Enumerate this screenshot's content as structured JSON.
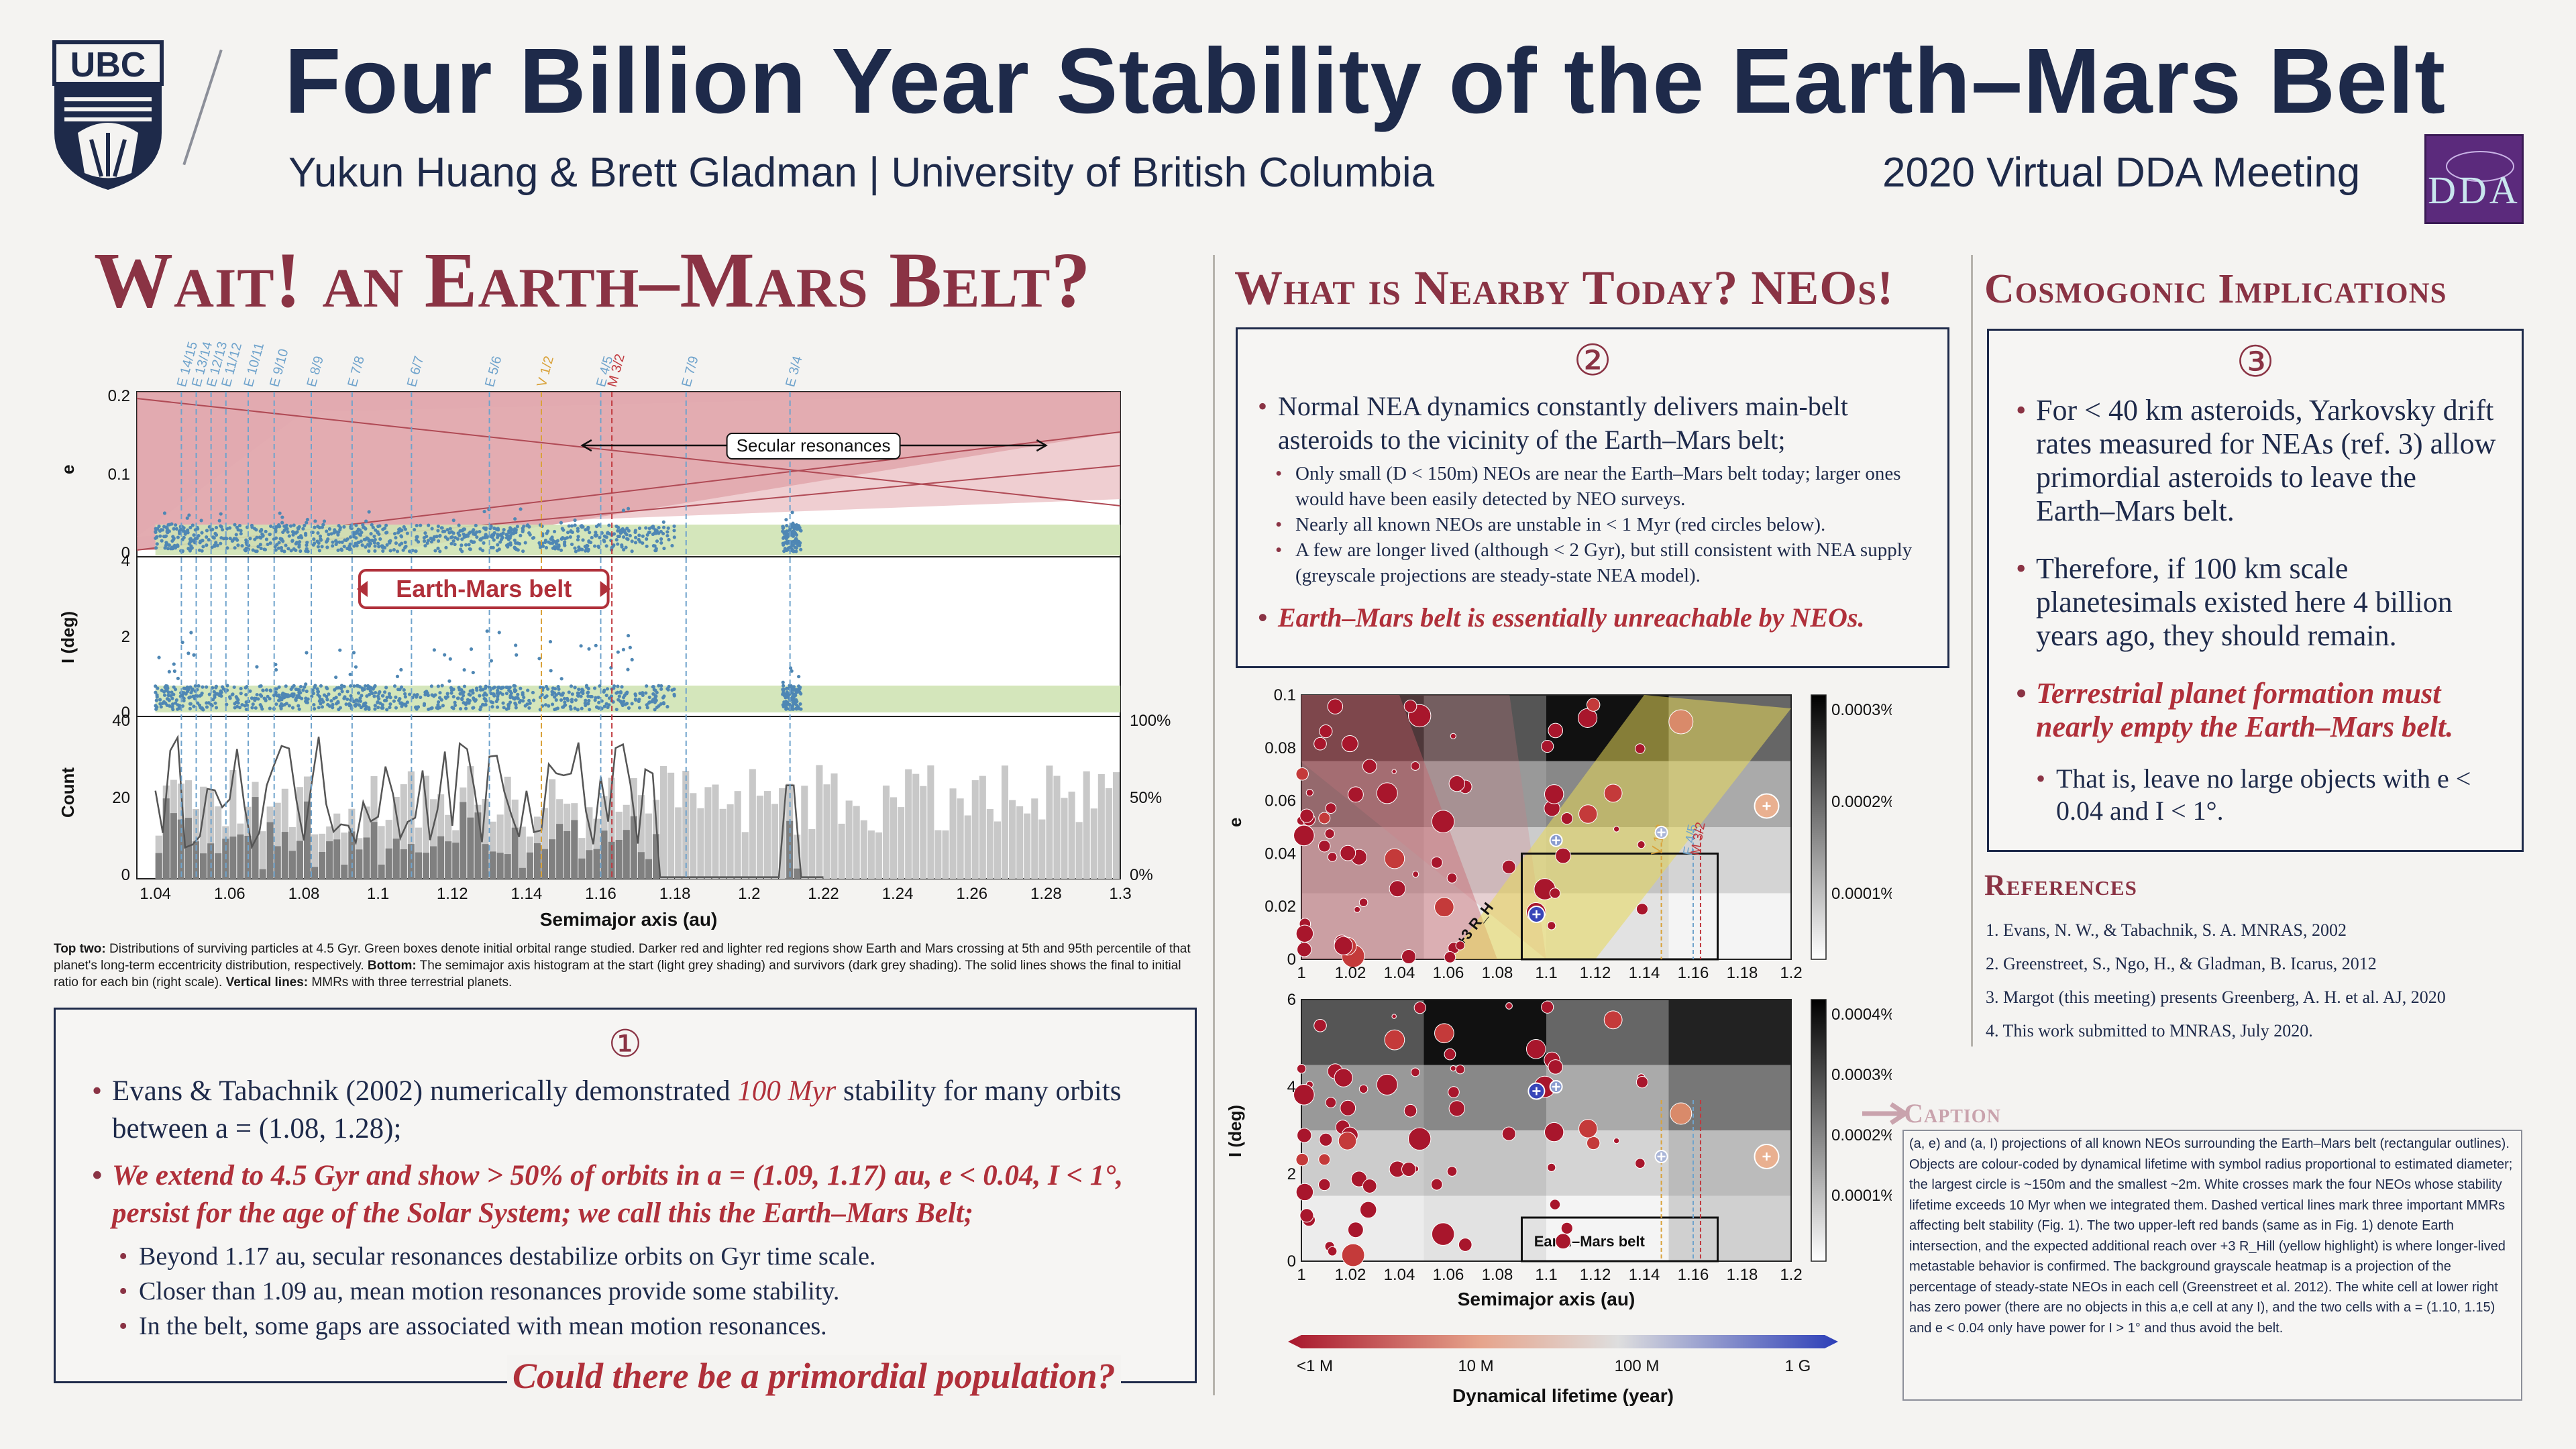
{
  "header": {
    "logo_text": "UBC",
    "title": "Four Billion Year Stability of the Earth–Mars Belt",
    "authors": "Yukun Huang & Brett Gladman | University of British Columbia",
    "meeting": "2020 Virtual DDA Meeting",
    "dda_logo": "DDA"
  },
  "left": {
    "heading": "Wait! an Earth–Mars Belt?",
    "caption_bold1": "Top two:",
    "caption1": " Distributions of surviving particles at 4.5 Gyr. Green boxes denote initial orbital range studied. Darker red and lighter red regions show Earth and Mars crossing at 5th and 95th percentile of that planet's long-term eccentricity distribution, respectively.",
    "caption_bold2": "Bottom:",
    "caption2": " The semimajor axis histogram at the start (light grey shading) and survivors (dark grey shading). The solid lines shows the final to initial ratio for each bin (right scale).",
    "caption_bold3": "Vertical lines:",
    "caption3": " MMRs with three terrestrial planets.",
    "box_num": "①",
    "b1_pre": "Evans & Tabachnik (2002) numerically demonstrated ",
    "b1_em": "100 Myr",
    "b1_post": " stability for many orbits between a = (1.08, 1.28);",
    "b2": "We extend to 4.5 Gyr and show > 50% of orbits in a = (1.09, 1.17) au, e < 0.04, I < 1°, persist for the age of the Solar System; we call this the Earth–Mars Belt;",
    "sub1": "Beyond 1.17 au, secular resonances destabilize orbits on Gyr time scale.",
    "sub2": "Closer than 1.09 au, mean motion resonances provide some stability.",
    "sub3": "In the belt, some gaps are associated with mean motion resonances.",
    "question": "Could there be a primordial population?"
  },
  "fig1": {
    "res_labels": [
      "E 14/15",
      "E 13/14",
      "E 12/13",
      "E 11/12",
      "E 10/11",
      "E 9/10",
      "E 8/9",
      "E 7/8",
      "E 6/7",
      "E 5/6",
      "V 1/2",
      "E 4/5",
      "M 3/2",
      "E 7/9",
      "E 3/4"
    ],
    "res_a": [
      1.047,
      1.051,
      1.055,
      1.059,
      1.065,
      1.072,
      1.082,
      1.093,
      1.109,
      1.13,
      1.144,
      1.16,
      1.163,
      1.183,
      1.211
    ],
    "secular_label": "Secular resonances",
    "belt_label": "Earth-Mars belt",
    "e_label": "e",
    "i_label": "I (deg)",
    "count_label": "Count",
    "x_label": "Semimajor axis (au)",
    "e_ticks": [
      "0.2",
      "0.1",
      "0"
    ],
    "i_ticks": [
      "4",
      "2",
      "0"
    ],
    "c_ticks": [
      "40",
      "20",
      "0"
    ],
    "pct_ticks": [
      "100%",
      "50%",
      "0%"
    ],
    "x_ticks": [
      "1.04",
      "1.06",
      "1.08",
      "1.1",
      "1.12",
      "1.14",
      "1.16",
      "1.18",
      "1.2",
      "1.22",
      "1.24",
      "1.26",
      "1.28",
      "1.3"
    ]
  },
  "middle": {
    "heading": "What is Nearby Today? NEOs!",
    "box_num": "②",
    "b1": "Normal NEA dynamics constantly delivers main-belt asteroids to the vicinity of the Earth–Mars belt;",
    "s1": "Only small (D < 150m) NEOs are near the Earth–Mars belt today; larger ones would have been easily detected by NEO surveys.",
    "s2": "Nearly all known NEOs are unstable in < 1 Myr (red circles below).",
    "s3": "A few are longer lived (although < 2 Gyr), but still consistent with NEA supply (greyscale projections are steady-state NEA model).",
    "b2": "Earth–Mars belt is essentially unreachable by NEOs."
  },
  "fig2": {
    "e_label": "e",
    "i_label": "I (deg)",
    "x_label": "Semimajor axis (au)",
    "e_ticks": [
      "0.1",
      "0.08",
      "0.06",
      "0.04",
      "0.02",
      "0"
    ],
    "i_ticks": [
      "6",
      "4",
      "2",
      "0"
    ],
    "x_ticks": [
      "1",
      "1.02",
      "1.04",
      "1.06",
      "1.08",
      "1.1",
      "1.12",
      "1.14",
      "1.16",
      "1.18",
      "1.2"
    ],
    "cb1": [
      "0.0003%",
      "0.0002%",
      "0.0001%"
    ],
    "cb2": [
      "0.0004%",
      "0.0003%",
      "0.0002%",
      "0.0001%"
    ],
    "hill_label": "+3 R_H",
    "belt_label": "Earth–Mars belt",
    "res_labels": [
      "V 1/2",
      "E 4/5",
      "M 3/2"
    ],
    "lifetime_ticks": [
      "<1 M",
      "10 M",
      "100 M",
      "1 G"
    ],
    "lifetime_label": "Dynamical lifetime (year)"
  },
  "right": {
    "heading": "Cosmogonic Implications",
    "box_num": "③",
    "b1": "For < 40 km asteroids, Yarkovsky drift rates measured for NEAs (ref. 3) allow primordial asteroids to leave the Earth–Mars belt.",
    "b2": "Therefore, if 100 km scale planetesimals existed here 4 billion years ago, they should remain.",
    "b3": "Terrestrial planet formation must nearly empty the Earth–Mars belt.",
    "sub": "That is, leave no large objects with e < 0.04 and I < 1°.",
    "ref_heading": "References",
    "refs": [
      "1. Evans, N. W., & Tabachnik, S. A. MNRAS, 2002",
      "2. Greenstreet, S., Ngo, H., & Gladman, B. Icarus, 2012",
      "3. Margot (this meeting) presents Greenberg, A. H. et al. AJ, 2020",
      "4. This work submitted to MNRAS, July 2020."
    ],
    "caption_heading": "Caption",
    "caption": "(a, e) and (a, I) projections of all known NEOs surrounding the Earth–Mars belt (rectangular outlines). Objects are colour-coded by dynamical lifetime with symbol radius proportional to estimated diameter; the largest circle is ~150m and the smallest ~2m. White crosses mark the four NEOs whose stability lifetime exceeds 10 Myr when we integrated them. Dashed vertical lines mark three important MMRs affecting belt stability (Fig. 1). The two upper-left red bands (same as in Fig. 1) denote Earth intersection, and the expected additional reach over +3 R_Hill (yellow highlight) is where longer-lived metastable behavior is confirmed. The background grayscale heatmap is a projection of the percentage of steady-state NEOs in each cell (Greenstreet et al. 2012). The white cell at lower right has zero power (there are no objects in this a,e cell at any I), and the two cells with a = (1.10, 1.15) and e < 0.04 only have power for I > 1° and thus avoid the belt."
  },
  "colors": {
    "navy": "#1e2a4a",
    "maroon": "#8a3344",
    "red": "#b0303a",
    "green": "#cfe3b4",
    "blue": "#4f87b4"
  }
}
